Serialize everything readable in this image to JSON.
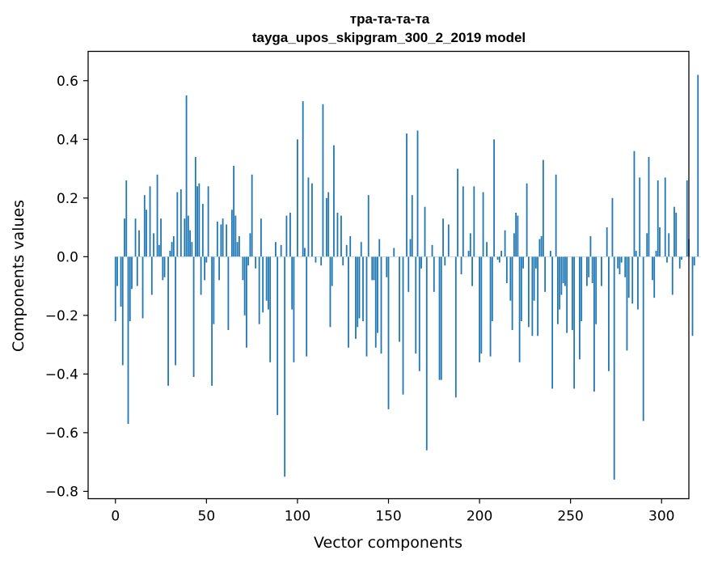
{
  "chart_data": {
    "type": "bar",
    "title": "тра-та-та-та",
    "subtitle": "tayga_upos_skipgram_300_2_2019 model",
    "xlabel": "Vector components",
    "ylabel": "Components values",
    "bar_color": "#1f77b4",
    "xlim": [
      -15,
      315
    ],
    "ylim": [
      -0.825,
      0.7
    ],
    "xticks": [
      0,
      50,
      100,
      150,
      200,
      250,
      300
    ],
    "yticks": [
      -0.8,
      -0.6,
      -0.4,
      -0.2,
      0.0,
      0.2,
      0.4,
      0.6
    ],
    "ytick_labels": [
      "−0.8",
      "−0.6",
      "−0.4",
      "−0.2",
      "0.0",
      "0.2",
      "0.4",
      "0.6"
    ],
    "legend": "none",
    "grid": false,
    "values": [
      -0.22,
      -0.1,
      0.0,
      -0.17,
      -0.37,
      0.13,
      0.26,
      -0.57,
      -0.22,
      -0.11,
      0.0,
      0.13,
      -0.1,
      0.09,
      0.0,
      -0.21,
      0.21,
      0.16,
      0.0,
      0.24,
      -0.13,
      0.08,
      0.0,
      0.28,
      0.04,
      0.13,
      -0.08,
      -0.07,
      0.0,
      -0.44,
      0.02,
      0.05,
      0.07,
      -0.37,
      0.22,
      0.0,
      0.23,
      0.0,
      0.13,
      0.55,
      0.14,
      0.09,
      0.05,
      -0.41,
      0.34,
      0.24,
      0.25,
      -0.13,
      0.18,
      -0.08,
      -0.02,
      0.24,
      0.0,
      -0.44,
      -0.23,
      0.0,
      0.12,
      -0.08,
      0.11,
      0.13,
      0.0,
      0.11,
      -0.25,
      0.0,
      0.16,
      0.31,
      0.14,
      0.05,
      0.07,
      0.0,
      -0.08,
      -0.2,
      -0.31,
      -0.03,
      0.08,
      0.28,
      0.0,
      -0.04,
      0.0,
      -0.23,
      0.13,
      -0.19,
      0.0,
      -0.15,
      -0.18,
      -0.36,
      0.0,
      0.0,
      0.05,
      -0.54,
      0.0,
      0.04,
      0.0,
      -0.75,
      0.14,
      0.0,
      0.15,
      -0.18,
      -0.36,
      0.0,
      0.4,
      0.0,
      0.0,
      0.53,
      0.03,
      -0.34,
      0.27,
      0.0,
      0.25,
      0.0,
      -0.02,
      0.0,
      0.0,
      -0.03,
      0.52,
      0.0,
      0.2,
      0.22,
      -0.24,
      -0.1,
      0.38,
      0.0,
      0.15,
      0.0,
      0.14,
      -0.03,
      0.0,
      0.04,
      -0.31,
      0.07,
      0.0,
      0.0,
      -0.28,
      -0.24,
      -0.21,
      0.05,
      -0.22,
      0.0,
      -0.34,
      0.21,
      0.0,
      -0.08,
      -0.08,
      -0.31,
      -0.26,
      0.06,
      -0.33,
      0.0,
      0.0,
      -0.07,
      -0.52,
      0.0,
      0.0,
      0.03,
      0.0,
      0.0,
      -0.29,
      0.0,
      -0.47,
      0.0,
      0.42,
      -0.12,
      0.06,
      0.21,
      0.0,
      -0.33,
      0.43,
      -0.39,
      -0.04,
      0.0,
      0.17,
      -0.66,
      0.0,
      0.0,
      0.04,
      -0.12,
      0.0,
      0.0,
      -0.42,
      -0.42,
      0.13,
      -0.03,
      0.0,
      0.11,
      0.0,
      0.0,
      0.0,
      -0.48,
      0.3,
      0.0,
      -0.06,
      0.24,
      0.0,
      0.0,
      0.02,
      0.08,
      -0.1,
      0.24,
      0.0,
      0.0,
      -0.36,
      -0.33,
      0.22,
      0.0,
      0.05,
      0.0,
      -0.34,
      -0.22,
      0.4,
      0.0,
      -0.01,
      -0.02,
      0.02,
      0.0,
      0.09,
      -0.09,
      0.0,
      -0.15,
      -0.25,
      0.08,
      0.15,
      0.14,
      -0.36,
      -0.22,
      -0.04,
      0.0,
      0.25,
      -0.24,
      0.0,
      -0.27,
      -0.15,
      -0.04,
      -0.27,
      0.06,
      0.07,
      0.33,
      -0.12,
      0.0,
      0.0,
      0.02,
      -0.45,
      0.0,
      0.28,
      -0.23,
      -0.18,
      -0.13,
      -0.09,
      -0.1,
      -0.26,
      0.0,
      0.0,
      -0.25,
      -0.45,
      0.0,
      0.0,
      -0.35,
      -0.22,
      0.0,
      0.0,
      -0.1,
      -0.07,
      0.07,
      -0.09,
      -0.46,
      -0.23,
      0.0,
      0.0,
      -0.1,
      0.0,
      0.0,
      0.1,
      -0.39,
      0.0,
      0.2,
      -0.76,
      0.0,
      -0.04,
      -0.06,
      -0.02,
      0.0,
      -0.07,
      -0.32,
      -0.14,
      0.0,
      -0.16,
      0.36,
      0.02,
      -0.18,
      0.27,
      0.0,
      -0.56,
      0.0,
      0.08,
      0.34,
      0.0,
      -0.08,
      -0.14,
      0.02,
      0.26,
      0.1,
      0.0,
      0.0,
      0.27,
      -0.02,
      0.08,
      0.0,
      -0.13,
      0.17,
      0.15,
      0.0,
      -0.04,
      -0.01,
      0.0,
      0.0,
      0.26,
      0.06,
      0.0,
      -0.27,
      -0.03,
      0.0,
      0.62,
      0.0,
      0.0
    ]
  }
}
